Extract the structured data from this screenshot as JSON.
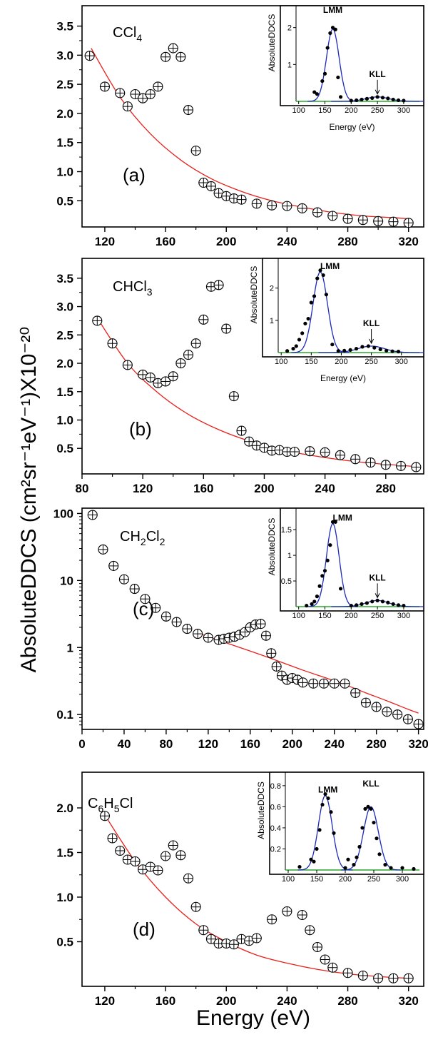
{
  "figure": {
    "y_axis_title": "AbsoluteDDCS (cm²sr⁻¹eV⁻¹)X10⁻²⁰",
    "x_axis_title": "Energy (eV)"
  },
  "chart_data": [
    {
      "type": "scatter",
      "panel_label": "(a)",
      "molecule": {
        "main": "CCl",
        "sub": "4",
        "tail": ""
      },
      "xlim": [
        105,
        330
      ],
      "ylim": [
        0.05,
        3.85
      ],
      "x_ticks": [
        120,
        160,
        200,
        240,
        280,
        320
      ],
      "y_ticks": [
        0.5,
        1.0,
        1.5,
        2.0,
        2.5,
        3.0,
        3.5
      ],
      "y_tick_labels": [
        "0.5",
        "1.0",
        "1.5",
        "2.0",
        "2.5",
        "3.0",
        "3.5"
      ],
      "y_scale": "linear",
      "series": [
        {
          "x": [
            110,
            120,
            130,
            135,
            140,
            145,
            150,
            155,
            160,
            165,
            170,
            175,
            180,
            185,
            190,
            195,
            200,
            205,
            210,
            220,
            230,
            240,
            250,
            260,
            270,
            280,
            290,
            300,
            310,
            320
          ],
          "y": [
            2.99,
            2.46,
            2.35,
            2.12,
            2.33,
            2.26,
            2.33,
            2.46,
            2.97,
            3.12,
            2.97,
            2.06,
            1.36,
            0.81,
            0.75,
            0.63,
            0.58,
            0.54,
            0.52,
            0.45,
            0.42,
            0.41,
            0.37,
            0.3,
            0.24,
            0.19,
            0.17,
            0.15,
            0.14,
            0.12
          ]
        },
        {
          "x": [
            111,
            130,
            150,
            170,
            190,
            210,
            230,
            250,
            270,
            290,
            310,
            320
          ],
          "y": [
            3.12,
            2.28,
            1.65,
            1.2,
            0.88,
            0.66,
            0.5,
            0.39,
            0.3,
            0.24,
            0.21,
            0.19
          ]
        }
      ],
      "inset": {
        "ylabel": "AbsoluteDDCS",
        "xlabel": "Energy (eV)",
        "xlim": [
          95,
          330
        ],
        "ylim": [
          0,
          2.4
        ],
        "x_ticks": [
          100,
          150,
          200,
          250,
          300
        ],
        "y_ticks": [
          1,
          2
        ],
        "points": {
          "x": [
            130,
            135,
            145,
            150,
            155,
            160,
            165,
            170,
            175,
            180,
            200,
            210,
            220,
            230,
            240,
            250,
            260,
            270,
            280,
            290,
            300
          ],
          "y": [
            0.25,
            0.2,
            0.55,
            0.75,
            1.45,
            1.85,
            2.0,
            1.95,
            0.65,
            0.12,
            0.02,
            0.03,
            0.05,
            0.07,
            0.09,
            0.12,
            0.1,
            0.08,
            0.05,
            0.03,
            0.02
          ]
        },
        "peaks": [
          {
            "label": "LMM",
            "x": 165
          },
          {
            "label": "KLL",
            "x": 250
          }
        ]
      }
    },
    {
      "type": "scatter",
      "panel_label": "(b)",
      "molecule": {
        "main": "CHCl",
        "sub": "3",
        "tail": ""
      },
      "xlim": [
        80,
        305
      ],
      "ylim": [
        0.05,
        3.85
      ],
      "x_ticks": [
        80,
        120,
        160,
        200,
        240,
        280
      ],
      "y_ticks": [
        0.5,
        1.0,
        1.5,
        2.0,
        2.5,
        3.0,
        3.5
      ],
      "y_tick_labels": [
        "0.5",
        "1.0",
        "1.5",
        "2.0",
        "2.5",
        "3.0",
        "3.5"
      ],
      "y_scale": "linear",
      "series": [
        {
          "x": [
            90,
            100,
            110,
            120,
            125,
            130,
            135,
            140,
            145,
            150,
            155,
            160,
            165,
            170,
            175,
            180,
            185,
            190,
            195,
            200,
            205,
            210,
            215,
            220,
            230,
            240,
            250,
            260,
            270,
            280,
            290,
            300
          ],
          "y": [
            2.75,
            2.35,
            1.97,
            1.8,
            1.75,
            1.65,
            1.68,
            1.77,
            2.0,
            2.15,
            2.35,
            2.77,
            3.35,
            3.38,
            2.61,
            1.42,
            0.81,
            0.62,
            0.55,
            0.51,
            0.46,
            0.47,
            0.44,
            0.44,
            0.45,
            0.43,
            0.38,
            0.31,
            0.25,
            0.21,
            0.19,
            0.17
          ]
        },
        {
          "x": [
            90,
            110,
            130,
            150,
            170,
            190,
            210,
            230,
            250,
            270,
            300
          ],
          "y": [
            2.8,
            2.0,
            1.48,
            1.1,
            0.83,
            0.63,
            0.48,
            0.38,
            0.3,
            0.24,
            0.18
          ]
        }
      ],
      "inset": {
        "ylabel": "AbsoluteDDCS",
        "xlabel": "Energy (eV)",
        "xlim": [
          95,
          330
        ],
        "ylim": [
          0,
          2.7
        ],
        "x_ticks": [
          100,
          150,
          200,
          250,
          300
        ],
        "y_ticks": [
          1,
          2
        ],
        "points": {
          "x": [
            110,
            120,
            125,
            130,
            135,
            140,
            145,
            150,
            155,
            160,
            165,
            170,
            175,
            185,
            195,
            205,
            215,
            225,
            235,
            245,
            255,
            265,
            275,
            285,
            295
          ],
          "y": [
            0.05,
            0.12,
            0.2,
            0.4,
            0.6,
            0.9,
            1.05,
            1.55,
            1.75,
            2.3,
            2.55,
            2.4,
            1.8,
            0.25,
            0.05,
            0.06,
            0.08,
            0.12,
            0.18,
            0.2,
            0.15,
            0.1,
            0.06,
            0.04,
            0.03
          ]
        },
        "peaks": [
          {
            "label": "LMM",
            "x": 165
          },
          {
            "label": "KLL",
            "x": 250
          }
        ]
      }
    },
    {
      "type": "scatter",
      "panel_label": "(c)",
      "molecule": {
        "main": "CH",
        "sub": "2",
        "tail": "Cl",
        "sub2": "2"
      },
      "xlim": [
        0,
        325
      ],
      "ylim": [
        0.06,
        120
      ],
      "x_ticks": [
        0,
        40,
        80,
        120,
        160,
        200,
        240,
        280,
        320
      ],
      "y_ticks": [
        0.1,
        1,
        10,
        100
      ],
      "y_tick_labels": [
        "0.1",
        "1",
        "10",
        "100"
      ],
      "y_scale": "log",
      "series": [
        {
          "x": [
            10,
            20,
            30,
            40,
            50,
            60,
            70,
            80,
            90,
            100,
            110,
            120,
            130,
            135,
            140,
            145,
            150,
            155,
            160,
            165,
            170,
            175,
            180,
            185,
            190,
            195,
            200,
            205,
            210,
            220,
            230,
            240,
            250,
            260,
            270,
            280,
            290,
            300,
            310,
            320
          ],
          "y": [
            95,
            29,
            16.5,
            10.4,
            7.5,
            5.3,
            3.9,
            2.9,
            2.4,
            1.9,
            1.6,
            1.4,
            1.3,
            1.35,
            1.4,
            1.45,
            1.55,
            1.7,
            2.0,
            2.2,
            2.25,
            1.5,
            0.82,
            0.52,
            0.38,
            0.33,
            0.35,
            0.33,
            0.3,
            0.29,
            0.29,
            0.29,
            0.29,
            0.21,
            0.15,
            0.13,
            0.11,
            0.1,
            0.085,
            0.072
          ]
        },
        {
          "x": [
            110,
            130,
            150,
            170,
            190,
            210,
            230,
            250,
            270,
            290,
            310,
            320
          ],
          "y": [
            1.65,
            1.28,
            1.0,
            0.78,
            0.6,
            0.46,
            0.36,
            0.28,
            0.21,
            0.16,
            0.12,
            0.105
          ]
        }
      ],
      "inset": {
        "ylabel": "AbsoluteDDCS",
        "xlabel": "",
        "xlim": [
          95,
          330
        ],
        "ylim": [
          0,
          1.78
        ],
        "x_ticks": [
          100,
          150,
          200,
          250,
          300
        ],
        "y_ticks": [
          0.5,
          1.0,
          1.5
        ],
        "points": {
          "x": [
            115,
            125,
            130,
            135,
            140,
            145,
            150,
            155,
            160,
            165,
            170,
            180,
            200,
            210,
            220,
            230,
            240,
            250,
            260,
            270,
            280,
            290,
            300
          ],
          "y": [
            0.02,
            0.05,
            0.1,
            0.2,
            0.4,
            0.6,
            0.7,
            0.9,
            1.2,
            1.65,
            1.65,
            0.35,
            0.02,
            0.03,
            0.05,
            0.07,
            0.1,
            0.12,
            0.1,
            0.08,
            0.05,
            0.03,
            0.02
          ]
        },
        "peaks": [
          {
            "label": "LMM",
            "x": 165
          },
          {
            "label": "KLL",
            "x": 250
          }
        ]
      }
    },
    {
      "type": "scatter",
      "panel_label": "(d)",
      "molecule": {
        "main": "C",
        "sub": "6",
        "tail": "H",
        "sub2": "5",
        "tail2": "Cl"
      },
      "xlim": [
        105,
        330
      ],
      "ylim": [
        0.0,
        2.4
      ],
      "x_ticks": [
        120,
        160,
        200,
        240,
        280,
        320
      ],
      "y_ticks": [
        0.5,
        1.0,
        1.5,
        2.0
      ],
      "y_tick_labels": [
        "0.5",
        "1.0",
        "1.5",
        "2.0"
      ],
      "y_scale": "linear",
      "series": [
        {
          "x": [
            120,
            125,
            130,
            135,
            140,
            145,
            150,
            155,
            160,
            165,
            170,
            175,
            180,
            185,
            190,
            195,
            200,
            205,
            210,
            215,
            220,
            230,
            240,
            250,
            255,
            260,
            265,
            270,
            280,
            290,
            300,
            310,
            320
          ],
          "y": [
            1.91,
            1.66,
            1.52,
            1.42,
            1.4,
            1.31,
            1.34,
            1.3,
            1.46,
            1.58,
            1.47,
            1.21,
            0.89,
            0.63,
            0.53,
            0.48,
            0.48,
            0.47,
            0.53,
            0.51,
            0.54,
            0.75,
            0.84,
            0.8,
            0.63,
            0.44,
            0.3,
            0.21,
            0.15,
            0.12,
            0.09,
            0.09,
            0.09
          ]
        },
        {
          "x": [
            120,
            140,
            160,
            180,
            200,
            220,
            240,
            260,
            280,
            300,
            320
          ],
          "y": [
            1.92,
            1.4,
            1.0,
            0.7,
            0.5,
            0.35,
            0.26,
            0.19,
            0.14,
            0.11,
            0.09
          ]
        }
      ],
      "inset": {
        "ylabel": "AbsoluteDDCS",
        "xlabel": "",
        "xlim": [
          95,
          330
        ],
        "ylim": [
          0,
          0.86
        ],
        "x_ticks": [
          100,
          150,
          200,
          250,
          300
        ],
        "y_ticks": [
          0.2,
          0.4,
          0.6,
          0.8
        ],
        "y_tick_labels": [
          "0.2",
          "0.4",
          "0.6",
          "0.8"
        ],
        "points": {
          "x": [
            120,
            140,
            145,
            150,
            155,
            160,
            165,
            170,
            175,
            180,
            200,
            205,
            215,
            220,
            225,
            230,
            235,
            240,
            245,
            250,
            255,
            260,
            270,
            280,
            300,
            320
          ],
          "y": [
            0.03,
            0.1,
            0.08,
            0.2,
            0.38,
            0.62,
            0.72,
            0.68,
            0.55,
            0.35,
            0.02,
            0.1,
            0.05,
            0.12,
            0.22,
            0.4,
            0.58,
            0.6,
            0.58,
            0.45,
            0.3,
            0.15,
            0.05,
            0.02,
            0.02,
            0.01
          ]
        },
        "peaks": [
          {
            "label": "LMM",
            "x": 165
          },
          {
            "label": "KLL",
            "x": 245
          }
        ]
      }
    }
  ],
  "colors": {
    "fit": "#e8201a",
    "gauss": "#1c2ab8",
    "baseline": "#2aa82a",
    "marker": "#000000"
  }
}
